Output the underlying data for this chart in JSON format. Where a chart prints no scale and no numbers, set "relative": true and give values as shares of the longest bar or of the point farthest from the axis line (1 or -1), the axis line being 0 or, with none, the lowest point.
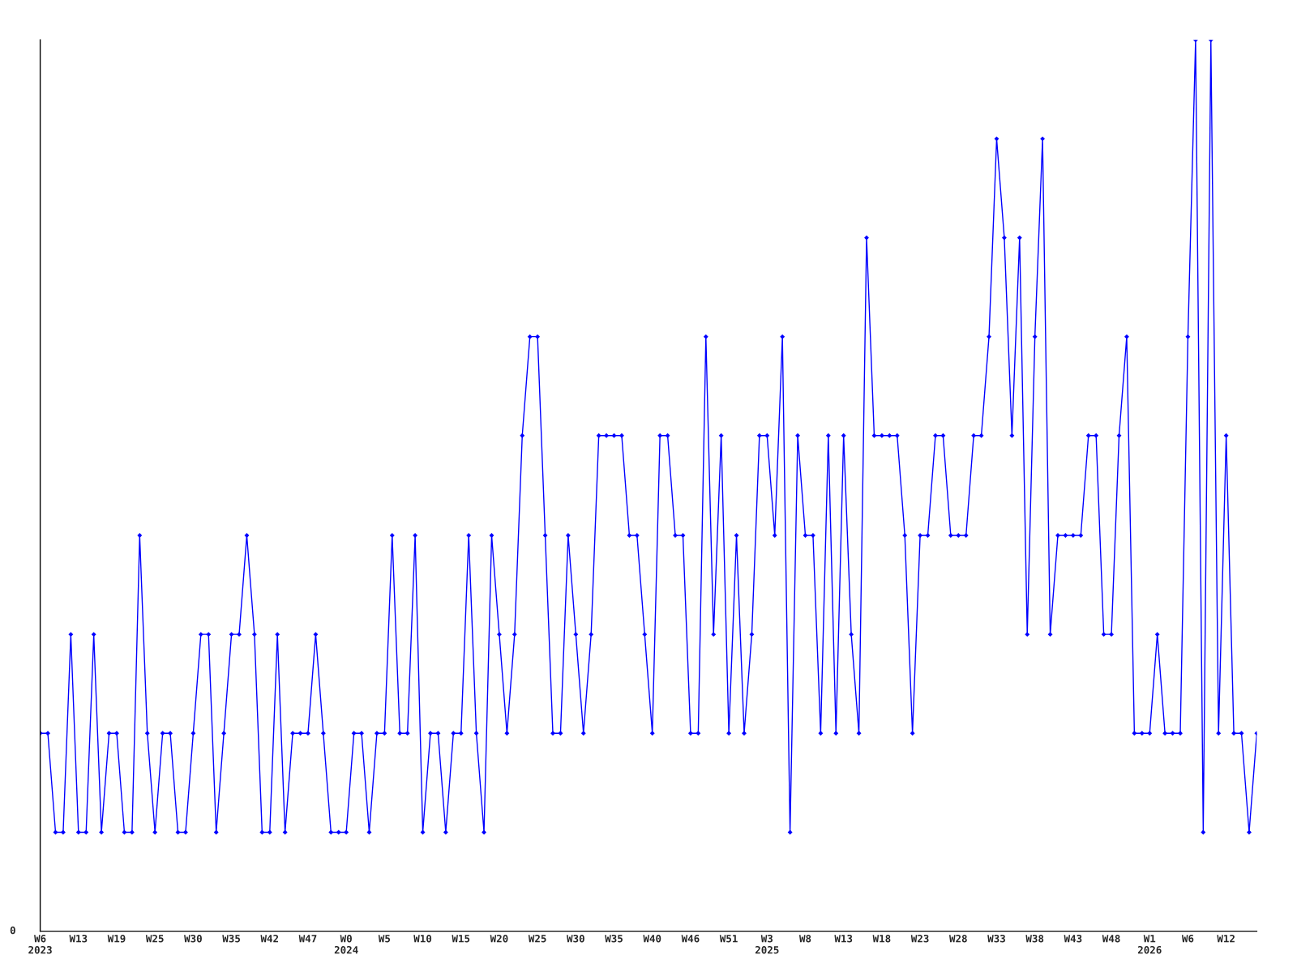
{
  "chart_data": {
    "type": "line",
    "relative": true,
    "marker": "diamond",
    "line_style": "solid",
    "annotations": [
      "0"
    ],
    "categories": [
      "W6\n2023",
      null,
      null,
      null,
      null,
      "W13",
      null,
      null,
      null,
      null,
      "W19",
      null,
      null,
      null,
      null,
      "W25",
      null,
      null,
      null,
      null,
      "W30",
      null,
      null,
      null,
      null,
      "W35",
      null,
      null,
      null,
      null,
      "W42",
      null,
      null,
      null,
      null,
      "W47",
      null,
      null,
      null,
      null,
      "W0\n2024",
      null,
      null,
      null,
      null,
      "W5",
      null,
      null,
      null,
      null,
      "W10",
      null,
      null,
      null,
      null,
      "W15",
      null,
      null,
      null,
      null,
      "W20",
      null,
      null,
      null,
      null,
      "W25",
      null,
      null,
      null,
      null,
      "W30",
      null,
      null,
      null,
      null,
      "W35",
      null,
      null,
      null,
      null,
      "W40",
      null,
      null,
      null,
      null,
      "W46",
      null,
      null,
      null,
      null,
      "W51",
      null,
      null,
      null,
      null,
      "W3\n2025",
      null,
      null,
      null,
      null,
      "W8",
      null,
      null,
      null,
      null,
      "W13",
      null,
      null,
      null,
      null,
      "W18",
      null,
      null,
      null,
      null,
      "W23",
      null,
      null,
      null,
      null,
      "W28",
      null,
      null,
      null,
      null,
      "W33",
      null,
      null,
      null,
      null,
      "W38",
      null,
      null,
      null,
      null,
      "W43",
      null,
      null,
      null,
      null,
      "W48",
      null,
      null,
      null,
      null,
      "W1\n2026",
      null,
      null,
      null,
      null,
      "W6",
      null,
      null,
      null,
      null,
      "W12",
      null,
      null,
      null,
      null
    ],
    "series": [
      {
        "color": "#0000ff",
        "values": [
          0.222,
          0.222,
          0.111,
          0.111,
          0.333,
          0.111,
          0.111,
          0.333,
          0.111,
          0.222,
          0.222,
          0.111,
          0.111,
          0.444,
          0.222,
          0.111,
          0.222,
          0.222,
          0.111,
          0.111,
          0.222,
          0.333,
          0.333,
          0.111,
          0.222,
          0.333,
          0.333,
          0.444,
          0.333,
          0.111,
          0.111,
          0.333,
          0.111,
          0.222,
          0.222,
          0.222,
          0.333,
          0.222,
          0.111,
          0.111,
          0.111,
          0.222,
          0.222,
          0.111,
          0.222,
          0.222,
          0.444,
          0.222,
          0.222,
          0.444,
          0.111,
          0.222,
          0.222,
          0.111,
          0.222,
          0.222,
          0.444,
          0.222,
          0.111,
          0.444,
          0.333,
          0.222,
          0.333,
          0.556,
          0.667,
          0.667,
          0.444,
          0.222,
          0.222,
          0.444,
          0.333,
          0.222,
          0.333,
          0.556,
          0.556,
          0.556,
          0.556,
          0.444,
          0.444,
          0.333,
          0.222,
          0.556,
          0.556,
          0.444,
          0.444,
          0.222,
          0.222,
          0.667,
          0.333,
          0.556,
          0.222,
          0.444,
          0.222,
          0.333,
          0.556,
          0.556,
          0.444,
          0.667,
          0.111,
          0.556,
          0.444,
          0.444,
          0.222,
          0.556,
          0.222,
          0.556,
          0.333,
          0.222,
          0.778,
          0.556,
          0.556,
          0.556,
          0.556,
          0.444,
          0.222,
          0.444,
          0.444,
          0.556,
          0.556,
          0.444,
          0.444,
          0.444,
          0.556,
          0.556,
          0.667,
          0.889,
          0.778,
          0.556,
          0.778,
          0.333,
          0.667,
          0.889,
          0.333,
          0.444,
          0.444,
          0.444,
          0.444,
          0.556,
          0.556,
          0.333,
          0.333,
          0.556,
          0.667,
          0.222,
          0.222,
          0.222,
          0.333,
          0.222,
          0.222,
          0.222,
          0.667,
          1,
          0.111,
          1,
          0.222,
          0.556,
          0.222,
          0.222,
          0.111,
          0.222
        ]
      }
    ]
  }
}
